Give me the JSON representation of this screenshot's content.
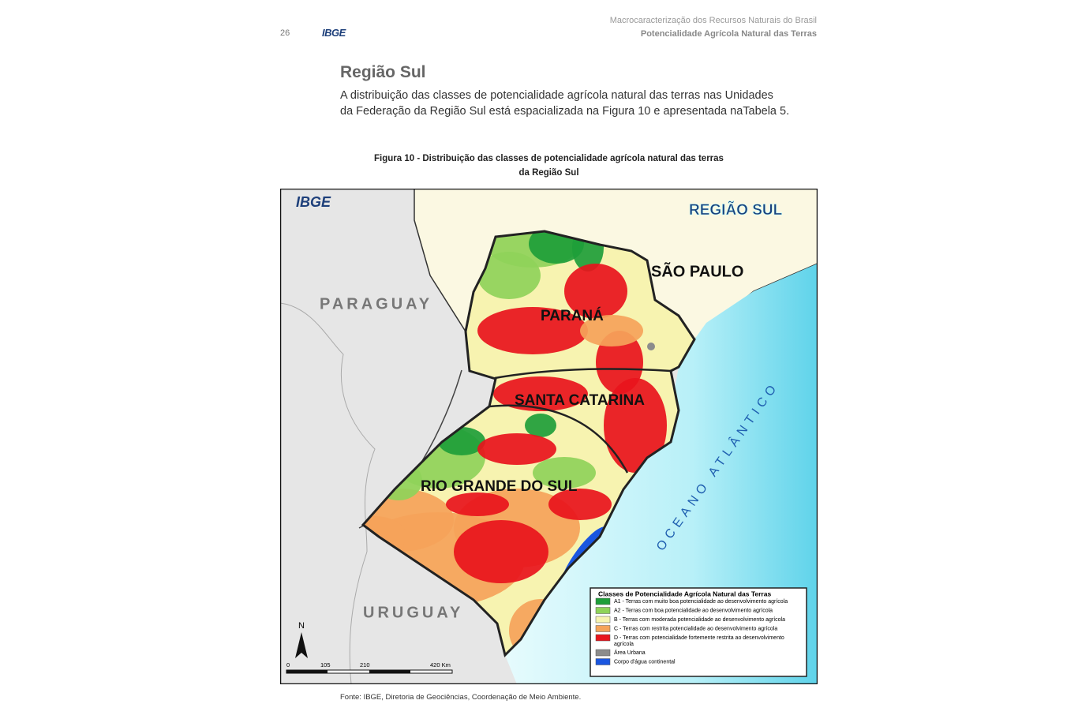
{
  "header": {
    "page_number": "26",
    "logo": "IBGE",
    "publication": "Macrocaracterização dos Recursos Naturais do Brasil",
    "section": "Potencialidade Agrícola Natural das Terras"
  },
  "section_title": "Região Sul",
  "paragraph": [
    "A distribuição das classes de potencialidade agrícola natural das terras nas Unidades",
    "da Federação da Região Sul está espacializada na Figura 10 e apresentada naTabela 5."
  ],
  "figure": {
    "caption": [
      "Figura 10 - Distribuição das classes de potencialidade agrícola natural das terras",
      "da Região Sul"
    ],
    "map": {
      "logo": "IBGE",
      "region": "REGIÃO SUL",
      "sao_paulo": "SÃO PAULO",
      "paraguay": "PARAGUAY",
      "uruguay": "URUGUAY",
      "parana": "PARANÁ",
      "santa_catarina": "SANTA CATARINA",
      "rio_grande_do_sul": "RIO GRANDE DO SUL",
      "ocean": "OCEANO ATLÂNTICO",
      "north": "N",
      "scale": [
        "0",
        "105",
        "210",
        "420 Km"
      ],
      "legend": {
        "title": "Classes de Potencialidade Agrícola Natural das Terras",
        "items": [
          {
            "lines": [
              "A1 - Terras com muito boa potencialidade ao desenvolvimento agrícola"
            ],
            "color": "#1e9e3a"
          },
          {
            "lines": [
              "A2 - Terras com boa potencialidade ao desenvolvimento agrícola"
            ],
            "color": "#8fd35a"
          },
          {
            "lines": [
              "B - Terras com moderada potencialidade ao desenvolvimento agrícola"
            ],
            "color": "#f7f3b0"
          },
          {
            "lines": [
              "C - Terras com restrita potencialidade ao desenvolvimento agrícola"
            ],
            "color": "#f5a35a"
          },
          {
            "lines": [
              "D - Terras com potencialidade fortemente restrita ao desenvolvimento",
              "agrícola"
            ],
            "color": "#e8141c"
          },
          {
            "lines": [
              "Área Urbana"
            ],
            "color": "#8c8c8c"
          },
          {
            "lines": [
              "Corpo d'água continental"
            ],
            "color": "#1a56e0"
          }
        ]
      }
    },
    "source": "Fonte: IBGE, Diretoria de Geociências, Coordenação de Meio Ambiente."
  }
}
